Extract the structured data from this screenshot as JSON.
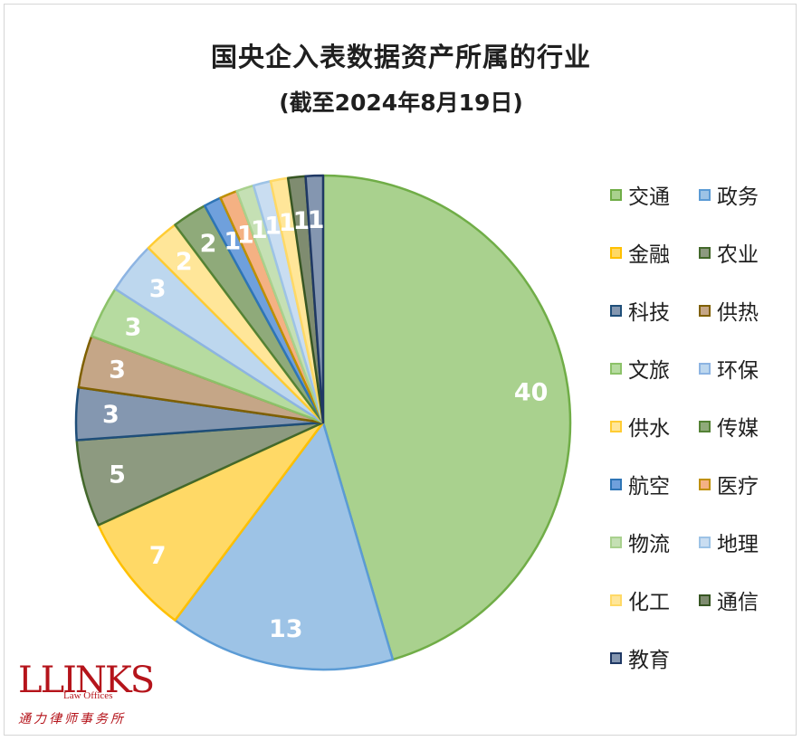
{
  "chart_data": {
    "type": "pie",
    "title": "国央企入表数据资产所属的行业",
    "subtitle": "(截至2024年8月19日)",
    "legend_position": "right",
    "slices": [
      {
        "label": "交通",
        "value": 40,
        "color": "#a9d18e",
        "border": "#70ad47"
      },
      {
        "label": "政务",
        "value": 13,
        "color": "#9dc3e6",
        "border": "#5b9bd5"
      },
      {
        "label": "金融",
        "value": 7,
        "color": "#ffd966",
        "border": "#ffc000"
      },
      {
        "label": "农业",
        "value": 5,
        "color": "#8d9a80",
        "border": "#43682b"
      },
      {
        "label": "科技",
        "value": 3,
        "color": "#8497b0",
        "border": "#1f4e79"
      },
      {
        "label": "供热",
        "value": 3,
        "color": "#c5a687",
        "border": "#7f6000"
      },
      {
        "label": "文旅",
        "value": 3,
        "color": "#b6dba0",
        "border": "#8cc269"
      },
      {
        "label": "环保",
        "value": 3,
        "color": "#bdd7ee",
        "border": "#8db4e2"
      },
      {
        "label": "供水",
        "value": 2,
        "color": "#ffe699",
        "border": "#ffcc33"
      },
      {
        "label": "传媒",
        "value": 2,
        "color": "#8faa7a",
        "border": "#548235"
      },
      {
        "label": "航空",
        "value": 1,
        "color": "#6fa0dc",
        "border": "#2e75b6"
      },
      {
        "label": "医疗",
        "value": 1,
        "color": "#f4b183",
        "border": "#bf9000"
      },
      {
        "label": "物流",
        "value": 1,
        "color": "#c5e0b4",
        "border": "#a9d18e"
      },
      {
        "label": "地理",
        "value": 1,
        "color": "#c9ddf1",
        "border": "#9dc3e6"
      },
      {
        "label": "化工",
        "value": 1,
        "color": "#ffe699",
        "border": "#ffd966"
      },
      {
        "label": "通信",
        "value": 1,
        "color": "#7f8c70",
        "border": "#375623"
      },
      {
        "label": "教育",
        "value": 1,
        "color": "#8496b0",
        "border": "#1f3864"
      }
    ]
  },
  "logo": {
    "main": "LLINKS",
    "sub": "Law Offices",
    "cn": "通力律师事务所"
  }
}
